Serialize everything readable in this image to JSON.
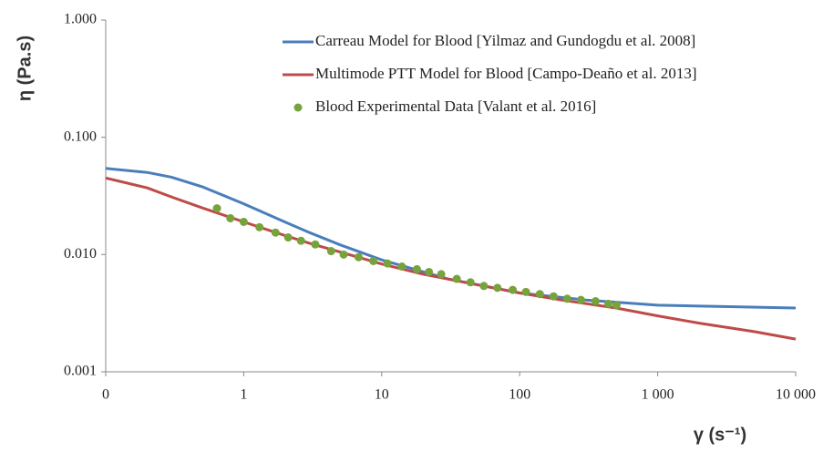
{
  "chart_data": {
    "type": "line",
    "x_label": "γ (s⁻¹)",
    "y_label": "η (Pa.s)",
    "xlog": true,
    "ylog": true,
    "xlim": [
      0.1,
      10000
    ],
    "ylim": [
      0.001,
      1
    ],
    "xticks": [
      {
        "value": 0.1,
        "label": "0"
      },
      1,
      10,
      100,
      {
        "value": 1000,
        "label": "1 000"
      },
      {
        "value": 10000,
        "label": "10 000"
      }
    ],
    "yticks": [
      {
        "value": 0.001,
        "label": "0.001"
      },
      {
        "value": 0.01,
        "label": "0.010"
      },
      {
        "value": 0.1,
        "label": "0.100"
      },
      {
        "value": 1,
        "label": "1.000"
      }
    ],
    "legend": "upper right",
    "series": [
      {
        "name": "Carreau Model for Blood [Yilmaz and Gundogdu et al. 2008]",
        "color": "#4a7ebb",
        "mark": "line",
        "x": [
          0.1,
          0.2,
          0.3,
          0.5,
          1,
          2,
          3,
          5,
          10,
          30,
          100,
          300,
          1000,
          3000,
          10000
        ],
        "values": [
          0.0543,
          0.0502,
          0.0457,
          0.0379,
          0.0271,
          0.0189,
          0.0154,
          0.0121,
          0.009,
          0.0062,
          0.0047,
          0.0041,
          0.0037,
          0.0036,
          0.0035
        ]
      },
      {
        "name": "Multimode PTT Model for Blood [Campo-Deaño et al. 2013]",
        "color": "#be4b48",
        "mark": "line",
        "x": [
          0.1,
          0.2,
          0.3,
          0.5,
          1,
          2,
          3,
          5,
          10,
          20,
          50,
          100,
          200,
          500,
          1000,
          2000,
          5000,
          10000
        ],
        "values": [
          0.045,
          0.037,
          0.031,
          0.025,
          0.019,
          0.0145,
          0.0125,
          0.0105,
          0.0083,
          0.0068,
          0.0055,
          0.0047,
          0.0041,
          0.0035,
          0.003,
          0.0026,
          0.0022,
          0.0019
        ]
      },
      {
        "name": "Blood Experimental Data [Valant et al. 2016]",
        "color": "#77a33c",
        "mark": "scatter",
        "x": [
          0.64,
          0.8,
          1.0,
          1.3,
          1.7,
          2.1,
          2.6,
          3.3,
          4.3,
          5.3,
          6.8,
          8.7,
          11,
          14,
          18,
          22,
          27,
          35,
          44,
          55,
          69,
          89,
          111,
          140,
          176,
          221,
          278,
          355,
          439,
          503
        ],
        "values": [
          0.0248,
          0.0204,
          0.019,
          0.0171,
          0.0154,
          0.014,
          0.0131,
          0.0122,
          0.0107,
          0.01,
          0.0095,
          0.0088,
          0.0084,
          0.0079,
          0.0075,
          0.0071,
          0.0068,
          0.0062,
          0.0058,
          0.0054,
          0.0052,
          0.005,
          0.0048,
          0.0046,
          0.0044,
          0.0042,
          0.0041,
          0.004,
          0.0038,
          0.0037
        ]
      }
    ]
  }
}
